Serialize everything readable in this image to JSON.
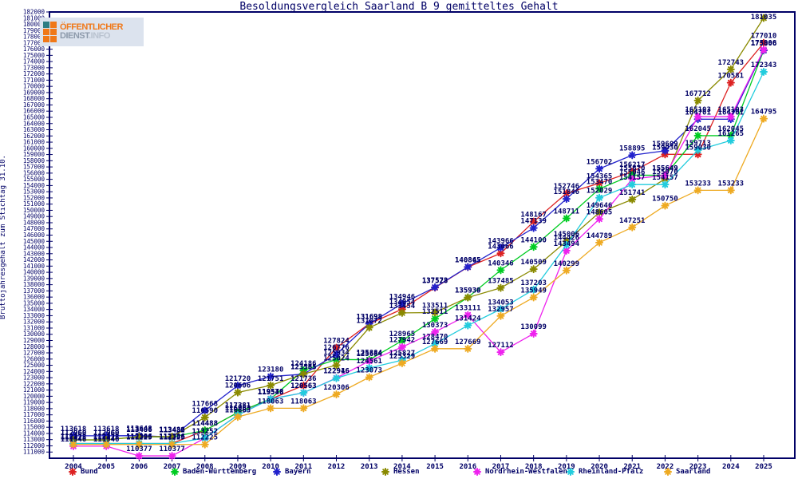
{
  "title": "Besoldungsvergleich Saarland B 9 gemitteltes Gehalt",
  "y_axis_title": "Bruttojahresgehalt zum Stichtag 31.10.",
  "logo": {
    "line1": "ÖFFENTLICHER",
    "line2": "DIENST",
    "line2_suffix": ".INFO"
  },
  "colors": {
    "axis": "#000066",
    "point_label": "#000066",
    "background": "#ffffff"
  },
  "chart_data": {
    "type": "line",
    "title": "Besoldungsvergleich Saarland B 9 gemitteltes Gehalt",
    "xlabel": "",
    "ylabel": "Bruttojahresgehalt zum Stichtag 31.10.",
    "x": [
      2004,
      2005,
      2006,
      2007,
      2008,
      2009,
      2010,
      2011,
      2012,
      2013,
      2014,
      2015,
      2016,
      2017,
      2018,
      2019,
      2020,
      2021,
      2022,
      2023,
      2024,
      2025
    ],
    "ylim": [
      110000,
      182000
    ],
    "ytick_start": 111000,
    "ytick_end": 182000,
    "ytick_step": 1000,
    "grid": false,
    "point_labels": true,
    "legend_position": "bottom",
    "series": [
      {
        "name": "Bund",
        "color": "#dd2222",
        "values": [
          112372,
          112372,
          112386,
          112386,
          114488,
          117381,
          119548,
          121736,
          127824,
          131698,
          134054,
          137528,
          140845,
          143066,
          148167,
          152746,
          154365,
          156217,
          159030,
          159030,
          170581,
          177010
        ]
      },
      {
        "name": "Baden-Württemberg",
        "color": "#00cc22",
        "values": [
          112960,
          112960,
          113486,
          113432,
          114488,
          117381,
          119578,
          124186,
          125934,
          125884,
          128965,
          132511,
          135939,
          140346,
          144100,
          148711,
          153470,
          155670,
          155649,
          162045,
          162045,
          175806
        ]
      },
      {
        "name": "Bayern",
        "color": "#2222cc",
        "values": [
          113618,
          113618,
          113648,
          113432,
          117668,
          121720,
          123180,
          123565,
          126776,
          131698,
          134946,
          137573,
          140865,
          143966,
          147139,
          151846,
          156702,
          158895,
          159609,
          164701,
          164701,
          175806
        ]
      },
      {
        "name": "Hessen",
        "color": "#8a8a00",
        "values": [
          112960,
          112960,
          113486,
          113486,
          116590,
          120606,
          121751,
          123585,
          125024,
          131072,
          133454,
          133511,
          135930,
          137485,
          140509,
          145006,
          149646,
          151741,
          155070,
          167712,
          172743,
          181035
        ]
      },
      {
        "name": "Nordrhein-Westfalen",
        "color": "#ee22ee",
        "values": [
          111946,
          111946,
          110377,
          110377,
          113252,
          116963,
          119578,
          120563,
          122946,
          125684,
          127942,
          130373,
          133111,
          127112,
          130099,
          143494,
          148605,
          155046,
          155649,
          165103,
          165103,
          175908
        ]
      },
      {
        "name": "Rheinland-Pfalz",
        "color": "#22ccdd",
        "values": [
          112372,
          112372,
          112386,
          112386,
          113252,
          116963,
          119548,
          120563,
          122916,
          124561,
          125827,
          128470,
          131424,
          134053,
          137203,
          144426,
          152029,
          154157,
          154157,
          159713,
          161265,
          172343
        ]
      },
      {
        "name": "Saarland",
        "color": "#eeaa22",
        "values": [
          112225,
          112225,
          112225,
          112225,
          112225,
          116663,
          118063,
          118063,
          120306,
          123073,
          125329,
          127669,
          127669,
          132957,
          135949,
          140299,
          144789,
          147251,
          150750,
          153233,
          153233,
          164795
        ]
      }
    ],
    "legend_x_positions": [
      85,
      213,
      341,
      477,
      592,
      709,
      831
    ]
  }
}
